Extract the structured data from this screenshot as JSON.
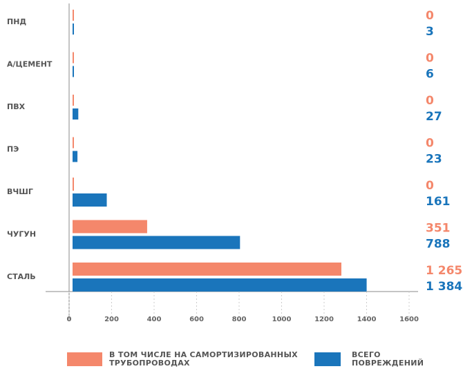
{
  "chart_data": {
    "type": "barh",
    "categories": [
      "ПНД",
      "А/ЦЕМЕНТ",
      "ПВХ",
      "ПЭ",
      "ВЧШГ",
      "ЧУГУН",
      "СТАЛЬ"
    ],
    "series": [
      {
        "name": "В ТОМ ЧИСЛЕ НА САМОРТИЗИРОВАННЫХ ТРУБОПРОВОДАХ",
        "color": "#f4876b",
        "values": [
          0,
          0,
          0,
          0,
          0,
          351,
          1265
        ],
        "value_labels": [
          "0",
          "0",
          "0",
          "0",
          "0",
          "351",
          "1 265"
        ]
      },
      {
        "name": "ВСЕГО ПОВРЕЖДЕНИЙ",
        "color": "#1a75bb",
        "values": [
          3,
          6,
          27,
          23,
          161,
          788,
          1384
        ],
        "value_labels": [
          "3",
          "6",
          "27",
          "23",
          "161",
          "788",
          "1 384"
        ]
      }
    ],
    "xlim": [
      0,
      1600
    ],
    "xticks": [
      0,
      200,
      400,
      600,
      800,
      1000,
      1200,
      1400,
      1600
    ]
  }
}
